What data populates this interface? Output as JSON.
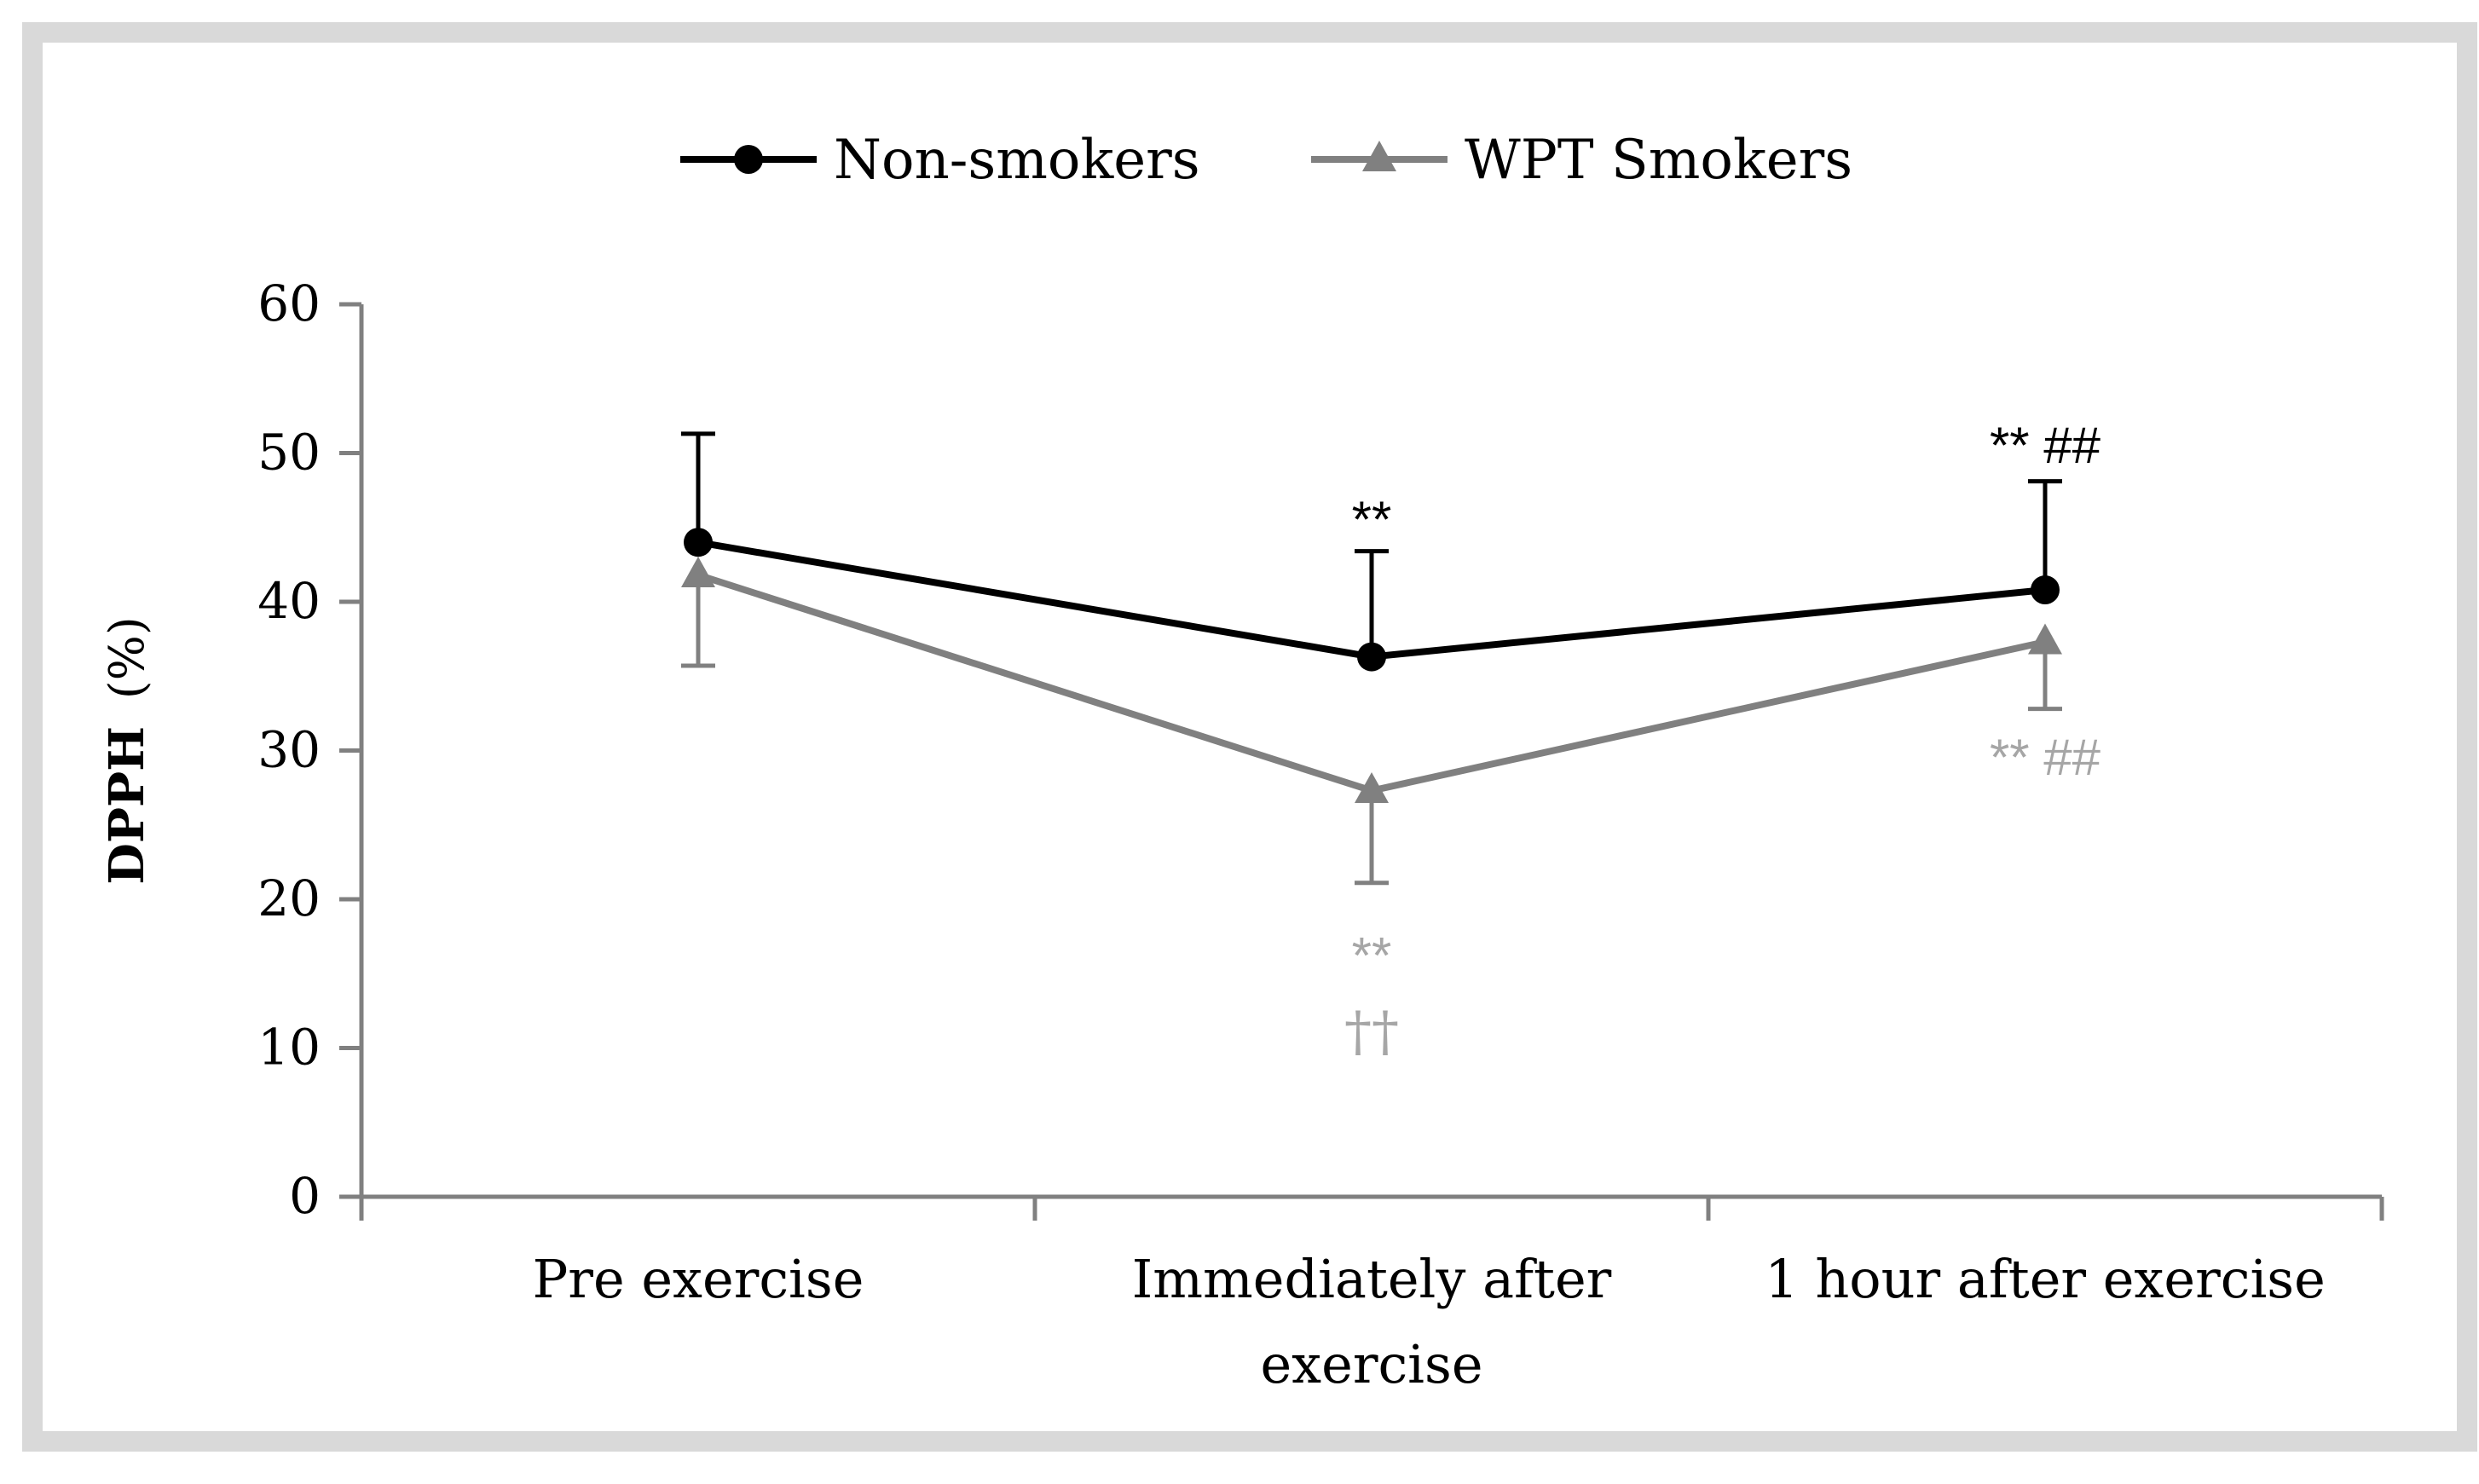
{
  "chart_data": {
    "type": "line",
    "title": "",
    "xlabel": "",
    "ylabel_bold": "DPPH",
    "ylabel_unit": "(%)",
    "ylim": [
      0,
      60
    ],
    "yticks": [
      0,
      10,
      20,
      30,
      40,
      50,
      60
    ],
    "ytick_labels": [
      "0",
      "10",
      "20",
      "30",
      "40",
      "50",
      "60"
    ],
    "legend_position": "top-center",
    "categories": [
      {
        "lines": [
          "Pre exercise"
        ]
      },
      {
        "lines": [
          "Immediately after",
          "exercise"
        ]
      },
      {
        "lines": [
          "1 hour after exercise"
        ]
      }
    ],
    "series": [
      {
        "name": "Non-smokers",
        "color": "#000000",
        "marker": "circle",
        "values": [
          44.0,
          36.3,
          40.8
        ],
        "error": [
          7.3,
          7.1,
          7.3
        ],
        "error_direction": "up"
      },
      {
        "name": "WPT Smokers",
        "color": "#808080",
        "marker": "triangle",
        "values": [
          41.8,
          27.3,
          37.3
        ],
        "error": [
          6.1,
          6.2,
          4.5
        ],
        "error_direction": "down"
      }
    ],
    "annotations": [
      {
        "text": "**",
        "category": 1,
        "value": 45.5,
        "color": "#000000"
      },
      {
        "text": "**  ##",
        "category": 2,
        "value": 50.5,
        "color": "#000000"
      },
      {
        "text": "** ##",
        "category": 2,
        "value": 29.5,
        "color": "#a6a6a6"
      },
      {
        "text": "**",
        "category": 1,
        "value": 16.2,
        "color": "#a6a6a6"
      },
      {
        "text": "††",
        "category": 1,
        "value": 11.0,
        "color": "#a6a6a6"
      }
    ]
  }
}
